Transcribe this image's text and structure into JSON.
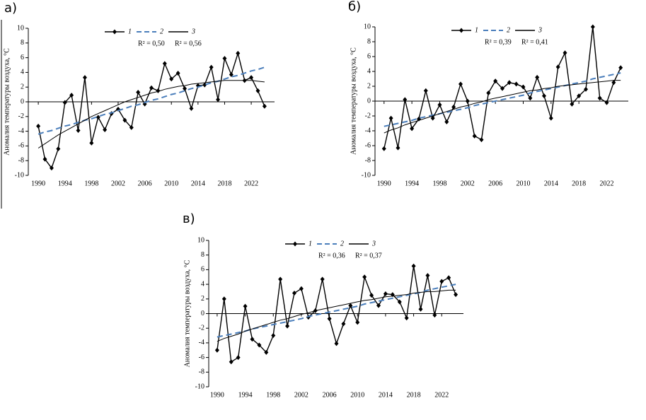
{
  "chart_data": [
    {
      "type": "line",
      "panel": "а)",
      "y_label": "Аномалия температуры воздуха, °С",
      "x": [
        1990,
        1991,
        1992,
        1993,
        1994,
        1995,
        1996,
        1997,
        1998,
        1999,
        2000,
        2001,
        2002,
        2003,
        2004,
        2005,
        2006,
        2007,
        2008,
        2009,
        2010,
        2011,
        2012,
        2013,
        2014,
        2015,
        2016,
        2017,
        2018,
        2019,
        2020,
        2021,
        2022,
        2023,
        2024
      ],
      "xlim": [
        1988.5,
        2025.5
      ],
      "xticks": [
        1990,
        1994,
        1998,
        2002,
        2006,
        2010,
        2014,
        2018,
        2022
      ],
      "ylim": [
        -10,
        10
      ],
      "yticks": [
        -10,
        -8,
        -6,
        -4,
        -2,
        0,
        2,
        4,
        6,
        8,
        10
      ],
      "series": [
        {
          "name": "1",
          "color": "#000000",
          "marker": "diamond",
          "dash": false,
          "values": [
            -3.3,
            -7.8,
            -9.0,
            -6.4,
            -0.1,
            0.9,
            -3.9,
            3.3,
            -5.6,
            -2.1,
            -3.8,
            -1.6,
            -1.0,
            -2.5,
            -3.5,
            1.3,
            -0.3,
            1.9,
            1.5,
            5.2,
            3.1,
            3.9,
            1.8,
            -0.9,
            2.2,
            2.3,
            4.7,
            0.3,
            5.9,
            3.7,
            6.6,
            2.9,
            3.3,
            1.5,
            -0.6
          ]
        },
        {
          "name": "2",
          "color": "#4a7ebb",
          "marker": "none",
          "dash": true,
          "values": [
            -4.4,
            -4.1,
            -3.9,
            -3.6,
            -3.3,
            -3.1,
            -2.8,
            -2.5,
            -2.3,
            -2.0,
            -1.7,
            -1.5,
            -1.2,
            -0.9,
            -0.6,
            -0.4,
            -0.1,
            0.2,
            0.4,
            0.7,
            1.0,
            1.2,
            1.5,
            1.8,
            2.0,
            2.3,
            2.6,
            2.8,
            3.1,
            3.4,
            3.6,
            3.9,
            4.2,
            4.4,
            4.7
          ]
        },
        {
          "name": "3",
          "color": "#000000",
          "marker": "none",
          "dash": false,
          "values": [
            -6.3,
            -5.7,
            -5.1,
            -4.5,
            -4.0,
            -3.5,
            -3.0,
            -2.5,
            -2.0,
            -1.6,
            -1.2,
            -0.8,
            -0.4,
            0.0,
            0.3,
            0.6,
            0.9,
            1.2,
            1.4,
            1.7,
            1.9,
            2.1,
            2.2,
            2.4,
            2.5,
            2.6,
            2.7,
            2.8,
            2.9,
            2.9,
            2.9,
            2.9,
            2.9,
            2.8,
            2.7
          ]
        }
      ],
      "annotations": [
        {
          "text": "R² = 0,50",
          "color": "#4a7ebb"
        },
        {
          "text": "R² = 0,56",
          "color": "#000000"
        }
      ]
    },
    {
      "type": "line",
      "panel": "б)",
      "y_label": "Аномалия температуры воздуха, °С",
      "x": [
        1990,
        1991,
        1992,
        1993,
        1994,
        1995,
        1996,
        1997,
        1998,
        1999,
        2000,
        2001,
        2002,
        2003,
        2004,
        2005,
        2006,
        2007,
        2008,
        2009,
        2010,
        2011,
        2012,
        2013,
        2014,
        2015,
        2016,
        2017,
        2018,
        2019,
        2020,
        2021,
        2022,
        2023,
        2024
      ],
      "xlim": [
        1988.7,
        2025.1
      ],
      "xticks": [
        1990,
        1994,
        1998,
        2002,
        2006,
        2010,
        2014,
        2018,
        2022
      ],
      "ylim": [
        -10,
        10
      ],
      "yticks": [
        -10,
        -8,
        -6,
        -4,
        -2,
        0,
        2,
        4,
        6,
        8,
        10
      ],
      "series": [
        {
          "name": "1",
          "color": "#000000",
          "marker": "diamond",
          "dash": false,
          "values": [
            -6.4,
            -2.3,
            -6.3,
            0.2,
            -3.7,
            -2.4,
            1.4,
            -2.3,
            -0.5,
            -2.8,
            -0.8,
            2.3,
            0.0,
            -4.7,
            -5.2,
            1.1,
            2.7,
            1.7,
            2.5,
            2.3,
            1.9,
            0.4,
            3.2,
            0.7,
            -2.3,
            4.6,
            6.5,
            -0.4,
            0.7,
            1.6,
            10.0,
            0.4,
            -0.2,
            2.5,
            4.5
          ]
        },
        {
          "name": "2",
          "color": "#4a7ebb",
          "marker": "none",
          "dash": true,
          "values": [
            -3.4,
            -3.2,
            -3.0,
            -2.8,
            -2.6,
            -2.3,
            -2.1,
            -1.9,
            -1.7,
            -1.5,
            -1.3,
            -1.1,
            -0.9,
            -0.6,
            -0.4,
            -0.2,
            0.0,
            0.2,
            0.4,
            0.6,
            0.8,
            1.1,
            1.3,
            1.5,
            1.7,
            1.9,
            2.1,
            2.3,
            2.5,
            2.7,
            3.0,
            3.2,
            3.4,
            3.6,
            3.8
          ]
        },
        {
          "name": "3",
          "color": "#000000",
          "marker": "none",
          "dash": false,
          "values": [
            -4.3,
            -3.9,
            -3.6,
            -3.2,
            -2.9,
            -2.6,
            -2.3,
            -2.0,
            -1.7,
            -1.4,
            -1.1,
            -0.8,
            -0.6,
            -0.3,
            -0.1,
            0.2,
            0.4,
            0.6,
            0.8,
            1.0,
            1.2,
            1.4,
            1.5,
            1.7,
            1.8,
            2.0,
            2.1,
            2.2,
            2.3,
            2.4,
            2.5,
            2.6,
            2.7,
            2.8,
            2.8
          ]
        }
      ],
      "annotations": [
        {
          "text": "R² = 0,39",
          "color": "#4a7ebb"
        },
        {
          "text": "R² = 0,41",
          "color": "#000000"
        }
      ]
    },
    {
      "type": "line",
      "panel": "в)",
      "y_label": "Аномалия температуры воздуха, °С",
      "x": [
        1990,
        1991,
        1992,
        1993,
        1994,
        1995,
        1996,
        1997,
        1998,
        1999,
        2000,
        2001,
        2002,
        2003,
        2004,
        2005,
        2006,
        2007,
        2008,
        2009,
        2010,
        2011,
        2012,
        2013,
        2014,
        2015,
        2016,
        2017,
        2018,
        2019,
        2020,
        2021,
        2022,
        2023,
        2024
      ],
      "xlim": [
        1988.8,
        2025.1
      ],
      "xticks": [
        1990,
        1994,
        1998,
        2002,
        2006,
        2010,
        2014,
        2018,
        2022
      ],
      "ylim": [
        -10,
        10
      ],
      "yticks": [
        -10,
        -8,
        -6,
        -4,
        -2,
        0,
        2,
        4,
        6,
        8,
        10
      ],
      "series": [
        {
          "name": "1",
          "color": "#000000",
          "marker": "diamond",
          "dash": false,
          "values": [
            -5.0,
            2.0,
            -6.6,
            -6.0,
            1.0,
            -3.5,
            -4.3,
            -5.3,
            -3.0,
            4.7,
            -1.7,
            2.8,
            3.4,
            -0.5,
            0.4,
            4.7,
            -0.7,
            -4.1,
            -1.4,
            1.1,
            -1.2,
            5.0,
            2.5,
            1.1,
            2.7,
            2.6,
            1.6,
            -0.6,
            6.5,
            0.6,
            5.2,
            -0.2,
            4.4,
            4.9,
            2.6
          ]
        },
        {
          "name": "2",
          "color": "#4a7ebb",
          "marker": "none",
          "dash": true,
          "values": [
            -3.2,
            -3.0,
            -2.8,
            -2.6,
            -2.4,
            -2.1,
            -1.9,
            -1.7,
            -1.5,
            -1.3,
            -1.1,
            -0.9,
            -0.7,
            -0.4,
            -0.2,
            0.0,
            0.2,
            0.4,
            0.6,
            0.8,
            1.0,
            1.3,
            1.5,
            1.7,
            1.9,
            2.1,
            2.3,
            2.5,
            2.7,
            2.9,
            3.2,
            3.4,
            3.6,
            3.8,
            4.0
          ]
        },
        {
          "name": "3",
          "color": "#000000",
          "marker": "none",
          "dash": false,
          "values": [
            -3.8,
            -3.4,
            -3.1,
            -2.8,
            -2.4,
            -2.1,
            -1.8,
            -1.5,
            -1.2,
            -0.9,
            -0.7,
            -0.4,
            -0.1,
            0.1,
            0.4,
            0.6,
            0.8,
            1.0,
            1.2,
            1.4,
            1.6,
            1.8,
            1.9,
            2.1,
            2.3,
            2.4,
            2.5,
            2.6,
            2.8,
            2.9,
            3.0,
            3.0,
            3.1,
            3.2,
            3.2
          ]
        }
      ],
      "annotations": [
        {
          "text": "R² = 0,36",
          "color": "#4a7ebb"
        },
        {
          "text": "R² = 0,37",
          "color": "#000000"
        }
      ]
    }
  ]
}
